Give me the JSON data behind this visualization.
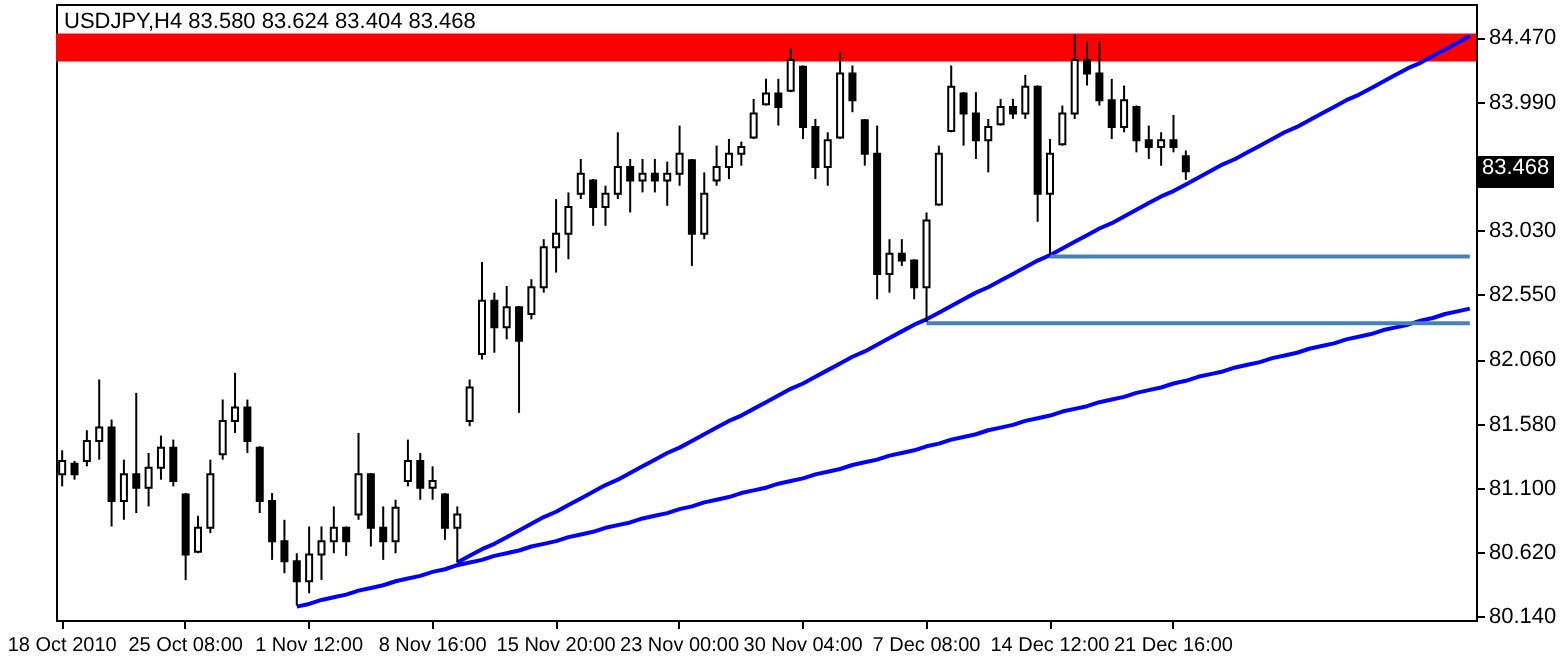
{
  "chart_data": {
    "type": "candlestick",
    "title": "USDJPY,H4  83.580 83.624 83.404 83.468",
    "categories": [
      "18 Oct 2010",
      null,
      null,
      null,
      null,
      null,
      null,
      null,
      null,
      null,
      "25 Oct 08:00",
      null,
      null,
      null,
      null,
      null,
      null,
      null,
      null,
      null,
      "1 Nov 12:00",
      null,
      null,
      null,
      null,
      null,
      null,
      null,
      null,
      null,
      "8 Nov 16:00",
      null,
      null,
      null,
      null,
      null,
      null,
      null,
      null,
      null,
      "15 Nov 20:00",
      null,
      null,
      null,
      null,
      null,
      null,
      null,
      null,
      null,
      "23 Nov 00:00",
      null,
      null,
      null,
      null,
      null,
      null,
      null,
      null,
      null,
      "30 Nov 04:00",
      null,
      null,
      null,
      null,
      null,
      null,
      null,
      null,
      null,
      "7 Dec 08:00",
      null,
      null,
      null,
      null,
      null,
      null,
      null,
      null,
      null,
      "14 Dec 12:00",
      null,
      null,
      null,
      null,
      null,
      null,
      null,
      null,
      null,
      "21 Dec 16:00",
      null,
      null,
      null,
      null,
      null,
      null,
      null,
      null,
      null,
      null,
      null,
      null,
      null,
      null,
      null,
      null,
      null,
      null,
      null,
      null,
      null,
      null,
      null,
      null
    ],
    "ohlc": [
      [
        81.2,
        81.38,
        81.11,
        81.3
      ],
      [
        81.28,
        81.3,
        81.16,
        81.2
      ],
      [
        81.3,
        81.53,
        81.26,
        81.45
      ],
      [
        81.45,
        81.91,
        81.31,
        81.55
      ],
      [
        81.55,
        81.61,
        80.81,
        81.0
      ],
      [
        81.0,
        81.31,
        80.86,
        81.2
      ],
      [
        81.2,
        81.81,
        80.91,
        81.1
      ],
      [
        81.1,
        81.36,
        80.96,
        81.25
      ],
      [
        81.25,
        81.49,
        81.16,
        81.4
      ],
      [
        81.4,
        81.46,
        81.11,
        81.15
      ],
      [
        81.05,
        81.06,
        80.41,
        80.6
      ],
      [
        80.62,
        80.89,
        80.61,
        80.8
      ],
      [
        80.8,
        81.31,
        80.76,
        81.2
      ],
      [
        81.35,
        81.76,
        81.31,
        81.6
      ],
      [
        81.6,
        81.96,
        81.51,
        81.7
      ],
      [
        81.7,
        81.76,
        81.36,
        81.45
      ],
      [
        81.4,
        81.41,
        80.91,
        81.0
      ],
      [
        81.0,
        81.06,
        80.56,
        80.7
      ],
      [
        80.7,
        80.86,
        80.46,
        80.55
      ],
      [
        80.55,
        80.61,
        80.22,
        80.4
      ],
      [
        80.4,
        80.81,
        80.31,
        80.6
      ],
      [
        80.6,
        80.81,
        80.41,
        80.7
      ],
      [
        80.7,
        80.96,
        80.61,
        80.8
      ],
      [
        80.8,
        80.81,
        80.59,
        80.7
      ],
      [
        80.9,
        81.51,
        80.86,
        81.2
      ],
      [
        81.2,
        81.21,
        80.66,
        80.8
      ],
      [
        80.8,
        80.96,
        80.56,
        80.7
      ],
      [
        80.7,
        81.01,
        80.61,
        80.95
      ],
      [
        81.15,
        81.46,
        81.11,
        81.3
      ],
      [
        81.3,
        81.36,
        81.01,
        81.1
      ],
      [
        81.1,
        81.26,
        81.01,
        81.15
      ],
      [
        81.05,
        81.06,
        80.71,
        80.8
      ],
      [
        80.8,
        80.96,
        80.54,
        80.9
      ],
      [
        81.6,
        81.91,
        81.56,
        81.85
      ],
      [
        82.1,
        82.79,
        82.06,
        82.5
      ],
      [
        82.5,
        82.56,
        82.11,
        82.3
      ],
      [
        82.3,
        82.61,
        82.21,
        82.45
      ],
      [
        82.45,
        82.46,
        81.66,
        82.2
      ],
      [
        82.4,
        82.66,
        82.36,
        82.6
      ],
      [
        82.6,
        82.96,
        82.56,
        82.9
      ],
      [
        82.9,
        83.26,
        82.71,
        83.0
      ],
      [
        83.0,
        83.31,
        82.81,
        83.2
      ],
      [
        83.3,
        83.56,
        83.26,
        83.45
      ],
      [
        83.4,
        83.41,
        83.06,
        83.2
      ],
      [
        83.2,
        83.36,
        83.06,
        83.3
      ],
      [
        83.3,
        83.76,
        83.26,
        83.5
      ],
      [
        83.5,
        83.56,
        83.16,
        83.4
      ],
      [
        83.4,
        83.56,
        83.31,
        83.45
      ],
      [
        83.45,
        83.56,
        83.31,
        83.4
      ],
      [
        83.4,
        83.54,
        83.21,
        83.45
      ],
      [
        83.45,
        83.81,
        83.36,
        83.6
      ],
      [
        83.55,
        83.56,
        82.76,
        83.0
      ],
      [
        83.0,
        83.46,
        82.96,
        83.3
      ],
      [
        83.4,
        83.66,
        83.36,
        83.5
      ],
      [
        83.5,
        83.71,
        83.41,
        83.6
      ],
      [
        83.6,
        83.69,
        83.51,
        83.65
      ],
      [
        83.72,
        84.01,
        83.71,
        83.9
      ],
      [
        83.97,
        84.16,
        83.96,
        84.05
      ],
      [
        84.05,
        84.16,
        83.81,
        83.95
      ],
      [
        84.07,
        84.39,
        84.06,
        84.3
      ],
      [
        84.25,
        84.26,
        83.71,
        83.8
      ],
      [
        83.8,
        83.86,
        83.41,
        83.5
      ],
      [
        83.5,
        83.76,
        83.36,
        83.7
      ],
      [
        83.72,
        84.36,
        83.71,
        84.2
      ],
      [
        84.2,
        84.26,
        83.91,
        84.0
      ],
      [
        83.85,
        83.86,
        83.51,
        83.6
      ],
      [
        83.6,
        83.81,
        82.51,
        82.7
      ],
      [
        82.7,
        82.96,
        82.56,
        82.85
      ],
      [
        82.85,
        82.96,
        82.76,
        82.8
      ],
      [
        82.8,
        82.81,
        82.51,
        82.6
      ],
      [
        82.6,
        83.16,
        82.34,
        83.1
      ],
      [
        83.22,
        83.66,
        83.21,
        83.6
      ],
      [
        83.77,
        84.26,
        83.76,
        84.1
      ],
      [
        84.05,
        84.06,
        83.66,
        83.9
      ],
      [
        83.9,
        84.06,
        83.56,
        83.7
      ],
      [
        83.7,
        83.86,
        83.46,
        83.8
      ],
      [
        83.82,
        84.01,
        83.81,
        83.95
      ],
      [
        83.95,
        84.01,
        83.86,
        83.9
      ],
      [
        83.9,
        84.19,
        83.86,
        84.1
      ],
      [
        84.1,
        84.11,
        83.09,
        83.3
      ],
      [
        83.3,
        83.71,
        82.84,
        83.6
      ],
      [
        83.67,
        83.96,
        83.66,
        83.9
      ],
      [
        83.9,
        84.49,
        83.86,
        84.3
      ],
      [
        84.3,
        84.44,
        84.11,
        84.2
      ],
      [
        84.2,
        84.44,
        83.96,
        84.0
      ],
      [
        84.0,
        84.16,
        83.71,
        83.8
      ],
      [
        83.8,
        84.11,
        83.76,
        84.0
      ],
      [
        83.95,
        83.96,
        83.61,
        83.7
      ],
      [
        83.7,
        83.81,
        83.56,
        83.65
      ],
      [
        83.65,
        83.76,
        83.51,
        83.7
      ],
      [
        83.7,
        83.89,
        83.61,
        83.65
      ],
      [
        83.58,
        83.624,
        83.404,
        83.468
      ],
      null,
      null,
      null,
      null,
      null,
      null,
      null,
      null,
      null,
      null,
      null,
      null,
      null,
      null,
      null,
      null,
      null,
      null,
      null,
      null,
      null,
      null,
      null
    ],
    "color": "#000000",
    "series": [
      {
        "type": "line",
        "color": "#0000ff",
        "values": [
          null,
          null,
          null,
          null,
          null,
          null,
          null,
          null,
          null,
          null,
          null,
          null,
          null,
          null,
          null,
          null,
          null,
          null,
          null,
          80.21,
          80.23,
          80.26,
          80.28,
          80.3,
          80.33,
          80.35,
          80.37,
          80.4,
          80.42,
          80.44,
          80.47,
          80.49,
          80.52,
          80.54,
          80.56,
          80.59,
          80.61,
          80.63,
          80.66,
          80.68,
          80.7,
          80.73,
          80.75,
          80.77,
          80.8,
          80.82,
          80.84,
          80.87,
          80.89,
          80.91,
          80.94,
          80.96,
          80.99,
          81.01,
          81.03,
          81.06,
          81.08,
          81.1,
          81.13,
          81.15,
          81.17,
          81.2,
          81.22,
          81.24,
          81.27,
          81.29,
          81.31,
          81.34,
          81.36,
          81.38,
          81.41,
          81.43,
          81.46,
          81.48,
          81.5,
          81.53,
          81.55,
          81.57,
          81.6,
          81.62,
          81.64,
          81.67,
          81.69,
          81.71,
          81.74,
          81.76,
          81.78,
          81.81,
          81.83,
          81.85,
          81.88,
          81.9,
          81.93,
          81.95,
          81.97,
          82.0,
          82.02,
          82.04,
          82.07,
          82.09,
          82.11,
          82.14,
          82.16,
          82.18,
          82.21,
          82.23,
          82.25,
          82.28,
          82.3,
          82.32,
          82.35,
          82.37,
          82.4,
          82.42,
          82.44
        ]
      },
      {
        "type": "line",
        "color": "#0000ff",
        "values": [
          null,
          null,
          null,
          null,
          null,
          null,
          null,
          null,
          null,
          null,
          null,
          null,
          null,
          null,
          null,
          null,
          null,
          null,
          null,
          null,
          null,
          null,
          null,
          null,
          null,
          null,
          null,
          null,
          null,
          null,
          null,
          null,
          80.54,
          80.59,
          80.64,
          80.68,
          80.73,
          80.78,
          80.83,
          80.88,
          80.92,
          80.97,
          81.02,
          81.07,
          81.12,
          81.16,
          81.21,
          81.26,
          81.31,
          81.36,
          81.4,
          81.45,
          81.5,
          81.55,
          81.6,
          81.64,
          81.69,
          81.74,
          81.79,
          81.84,
          81.88,
          81.93,
          81.98,
          82.03,
          82.08,
          82.12,
          82.17,
          82.22,
          82.27,
          82.32,
          82.36,
          82.41,
          82.46,
          82.51,
          82.56,
          82.6,
          82.65,
          82.7,
          82.75,
          82.8,
          82.84,
          82.89,
          82.94,
          82.99,
          83.04,
          83.08,
          83.13,
          83.18,
          83.23,
          83.28,
          83.32,
          83.37,
          83.42,
          83.47,
          83.52,
          83.56,
          83.61,
          83.66,
          83.71,
          83.76,
          83.8,
          83.85,
          83.9,
          83.95,
          84.0,
          84.04,
          84.09,
          84.14,
          84.19,
          84.24,
          84.28,
          84.33,
          84.38,
          84.43,
          84.48
        ]
      },
      {
        "type": "line",
        "color": "#4682b4",
        "values": [
          null,
          null,
          null,
          null,
          null,
          null,
          null,
          null,
          null,
          null,
          null,
          null,
          null,
          null,
          null,
          null,
          null,
          null,
          null,
          null,
          null,
          null,
          null,
          null,
          null,
          null,
          null,
          null,
          null,
          null,
          null,
          null,
          null,
          null,
          null,
          null,
          null,
          null,
          null,
          null,
          null,
          null,
          null,
          null,
          null,
          null,
          null,
          null,
          null,
          null,
          null,
          null,
          null,
          null,
          null,
          null,
          null,
          null,
          null,
          null,
          null,
          null,
          null,
          null,
          null,
          null,
          null,
          null,
          null,
          null,
          82.33,
          82.33,
          82.33,
          82.33,
          82.33,
          82.33,
          82.33,
          82.33,
          82.33,
          82.33,
          82.33,
          82.33,
          82.33,
          82.33,
          82.33,
          82.33,
          82.33,
          82.33,
          82.33,
          82.33,
          82.33,
          82.33,
          82.33,
          82.33,
          82.33,
          82.33,
          82.33,
          82.33,
          82.33,
          82.33,
          82.33,
          82.33,
          82.33,
          82.33,
          82.33,
          82.33,
          82.33,
          82.33,
          82.33,
          82.33,
          82.33,
          82.33,
          82.33,
          82.33,
          82.33
        ]
      },
      {
        "type": "line",
        "color": "#4682b4",
        "values": [
          null,
          null,
          null,
          null,
          null,
          null,
          null,
          null,
          null,
          null,
          null,
          null,
          null,
          null,
          null,
          null,
          null,
          null,
          null,
          null,
          null,
          null,
          null,
          null,
          null,
          null,
          null,
          null,
          null,
          null,
          null,
          null,
          null,
          null,
          null,
          null,
          null,
          null,
          null,
          null,
          null,
          null,
          null,
          null,
          null,
          null,
          null,
          null,
          null,
          null,
          null,
          null,
          null,
          null,
          null,
          null,
          null,
          null,
          null,
          null,
          null,
          null,
          null,
          null,
          null,
          null,
          null,
          null,
          null,
          null,
          null,
          null,
          null,
          null,
          null,
          null,
          null,
          null,
          null,
          null,
          82.83,
          82.83,
          82.83,
          82.83,
          82.83,
          82.83,
          82.83,
          82.83,
          82.83,
          82.83,
          82.83,
          82.83,
          82.83,
          82.83,
          82.83,
          82.83,
          82.83,
          82.83,
          82.83,
          82.83,
          82.83,
          82.83,
          82.83,
          82.83,
          82.83,
          82.83,
          82.83,
          82.83,
          82.83,
          82.83,
          82.83,
          82.83,
          82.83,
          82.83,
          82.83
        ]
      }
    ],
    "bands": [
      {
        "axis": "y",
        "from": 84.29,
        "to": 84.5,
        "color": "#ff0000"
      }
    ],
    "annotations": [
      "83.468"
    ],
    "ylim": [
      80.11,
      84.72
    ],
    "yticks": [
      {
        "value": 80.14,
        "label": "80.140"
      },
      {
        "value": 80.62,
        "label": "80.620"
      },
      {
        "value": 81.1,
        "label": "81.100"
      },
      {
        "value": 81.58,
        "label": "81.580"
      },
      {
        "value": 82.06,
        "label": "82.060"
      },
      {
        "value": 82.55,
        "label": "82.550"
      },
      {
        "value": 83.03,
        "label": "83.030"
      },
      {
        "value": 83.99,
        "label": "83.990"
      },
      {
        "value": 84.47,
        "label": "84.470"
      }
    ]
  }
}
